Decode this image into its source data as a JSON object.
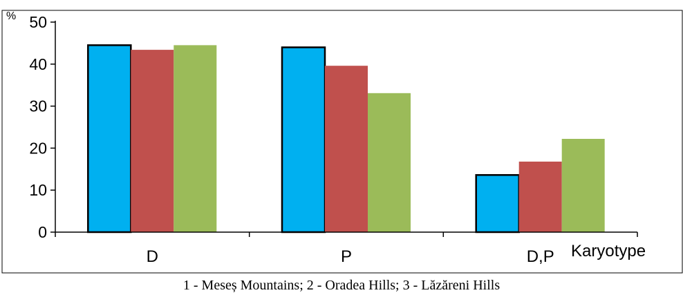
{
  "chart_data": {
    "type": "bar",
    "categories": [
      "D",
      "P",
      "D,P"
    ],
    "series": [
      {
        "values": [
          44.5,
          44.0,
          13.6
        ],
        "color": "#00b0f0",
        "outlined": true
      },
      {
        "values": [
          43.4,
          39.6,
          16.8
        ],
        "color": "#c0504d",
        "outlined": false
      },
      {
        "values": [
          44.5,
          33.1,
          22.2
        ],
        "color": "#9bbb59",
        "outlined": false
      }
    ],
    "y_unit": "%",
    "xlabel": "Karyotype",
    "ylim": [
      0,
      50
    ],
    "yticks": [
      0,
      10,
      20,
      30,
      40,
      50
    ],
    "grid": false,
    "legend": "none",
    "caption": "1 - Meseș Mountains; 2 - Oradea Hills; 3 - Lăzăreni Hills"
  }
}
